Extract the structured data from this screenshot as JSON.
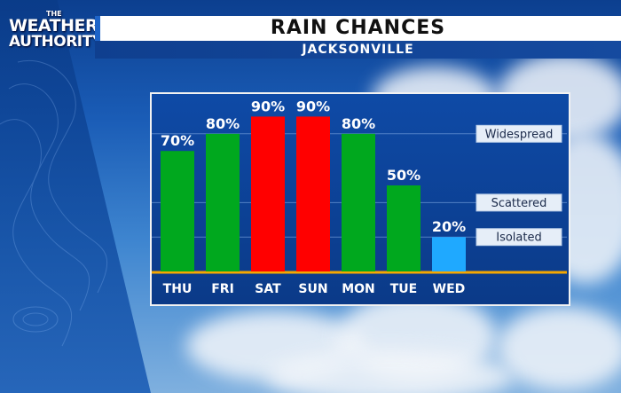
{
  "branding": {
    "logo_the": "THE",
    "logo_line1": "WEATHER",
    "logo_line2": "AUTHORITY"
  },
  "header": {
    "title": "RAIN CHANCES",
    "subtitle": "JACKSONVILLE"
  },
  "colors": {
    "high": "#ff0000",
    "mid": "#00a81e",
    "low": "#1fa9ff",
    "baseline": "#f6a800"
  },
  "chart_data": {
    "type": "bar",
    "title": "RAIN CHANCES",
    "subtitle": "JACKSONVILLE",
    "categories": [
      "THU",
      "FRI",
      "SAT",
      "SUN",
      "MON",
      "TUE",
      "WED"
    ],
    "values": [
      70,
      80,
      90,
      90,
      80,
      50,
      20
    ],
    "value_labels": [
      "70%",
      "80%",
      "90%",
      "90%",
      "80%",
      "50%",
      "20%"
    ],
    "bar_colors": [
      "#00a81e",
      "#00a81e",
      "#ff0000",
      "#ff0000",
      "#00a81e",
      "#00a81e",
      "#1fa9ff"
    ],
    "ylim": [
      0,
      100
    ],
    "levels": [
      {
        "label": "Widespread",
        "value": 80
      },
      {
        "label": "Scattered",
        "value": 40
      },
      {
        "label": "Isolated",
        "value": 20
      }
    ],
    "grid": true
  }
}
